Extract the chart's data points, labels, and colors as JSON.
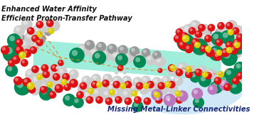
{
  "bg_color": "#ffffff",
  "figsize": [
    3.78,
    1.69
  ],
  "dpi": 100,
  "text_upper_left": [
    "Enhanced Water Affinity",
    "Efficient Proton-Transfer Pathway"
  ],
  "text_lower_right": "Missing Metal-Linker Connectivities",
  "text_color_upper": "#111111",
  "text_color_lower": "#1a2a7a",
  "text_fontsize_upper": 7.0,
  "text_fontsize_lower": 7.2,
  "channel_color": "#40ddb8",
  "channel_alpha": 0.5,
  "defect_ellipse_color": "#b0d8f0",
  "defect_ellipse_alpha": 0.6,
  "atom_green": "#008855",
  "atom_red": "#dd1111",
  "atom_white": "#cccccc",
  "atom_gray": "#999999",
  "atom_yellow": "#ddcc00",
  "atom_purple": "#bb77bb",
  "dashed_color": "#e08828",
  "axlim": [
    0,
    378,
    0,
    169
  ]
}
